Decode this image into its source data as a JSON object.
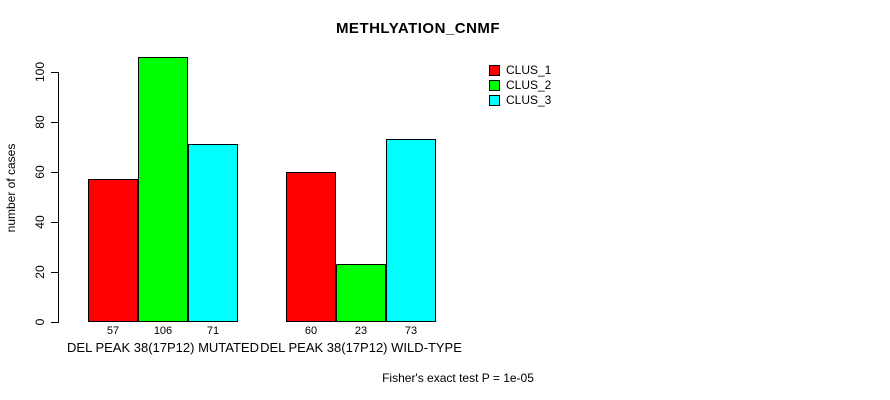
{
  "chart_data": {
    "type": "bar",
    "title": "METHLYATION_CNMF",
    "xlabel": "",
    "ylabel": "number of cases",
    "categories": [
      "DEL PEAK 38(17P12) MUTATED",
      "DEL PEAK 38(17P12) WILD-TYPE"
    ],
    "series": [
      {
        "name": "CLUS_1",
        "color": "#FF0000",
        "values": [
          57,
          60
        ]
      },
      {
        "name": "CLUS_2",
        "color": "#00FF00",
        "values": [
          106,
          23
        ]
      },
      {
        "name": "CLUS_3",
        "color": "#00FFFF",
        "values": [
          71,
          73
        ]
      }
    ],
    "yticks": [
      0,
      20,
      40,
      60,
      80,
      100
    ],
    "ylim": [
      0,
      106
    ],
    "grid": false,
    "legend_position": "top-right",
    "bar_value_labels": true,
    "annotation": "Fisher's exact test P = 1e-05",
    "background_color": "#FFFFFF",
    "axis_color": "#000000"
  }
}
